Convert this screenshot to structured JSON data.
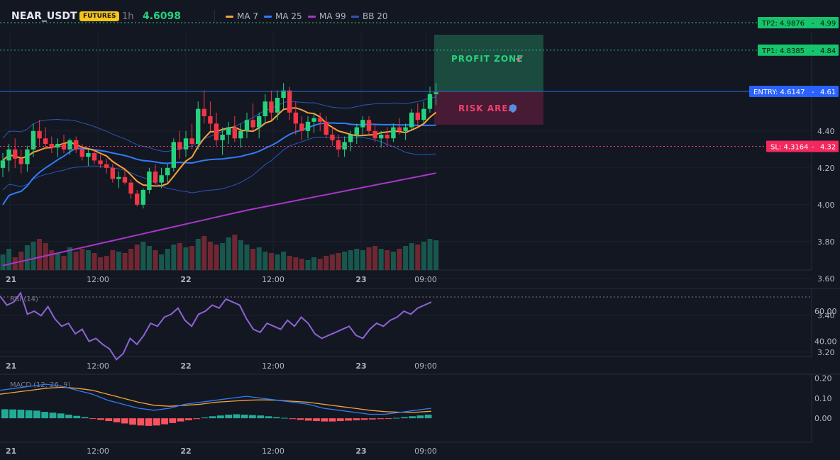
{
  "header": {
    "symbol": "NEAR_USDT",
    "badge": "FUTURES",
    "timeframe": "1h",
    "price": "4.6098",
    "legend": [
      {
        "name": "MA 7",
        "color": "#f7a33a"
      },
      {
        "name": "MA 25",
        "color": "#2f7df6"
      },
      {
        "name": "MA 99",
        "color": "#a936c9"
      },
      {
        "name": "BB 20",
        "color": "#2a56b8"
      }
    ]
  },
  "zones": {
    "profit_label": "PROFIT ZONE",
    "profit_icon": "rocket-icon",
    "risk_label": "RISK AREA",
    "risk_icon": "shield-icon"
  },
  "levels": {
    "tp2": {
      "label": "TP2: 4.9876",
      "axis": "4.99",
      "value": 4.9876
    },
    "tp1": {
      "label": "TP1: 4.8385",
      "axis": "4.84",
      "value": 4.8385
    },
    "entry": {
      "label": "ENTRY: 4.6147",
      "axis": "4.61",
      "value": 4.6147
    },
    "sl": {
      "label": "SL: 4.3164",
      "axis": "4.32",
      "value": 4.3164
    }
  },
  "axes": {
    "price_ticks": [
      "4.40",
      "4.20",
      "4.00",
      "3.80",
      "3.60",
      "3.40",
      "3.20"
    ],
    "price_tick_values": [
      4.4,
      4.2,
      4.0,
      3.8,
      3.6,
      3.4,
      3.2
    ],
    "time_ticks": [
      "21",
      "12:00",
      "22",
      "12:00",
      "23",
      "09:00"
    ],
    "rsi_ticks": [
      "60.00",
      "40.00"
    ],
    "macd_ticks": [
      "0.20",
      "0.10",
      "0.00"
    ]
  },
  "indicators": {
    "rsi_label": "RSI (14)",
    "macd_label": "MACD (12, 26, 9)"
  },
  "chart_data": {
    "type": "candlestick",
    "title": "NEAR_USDT",
    "ylim": [
      3.0,
      5.4
    ],
    "colors": {
      "up": "#26d27d",
      "down": "#f23645"
    },
    "candles": [
      [
        4.2,
        4.28,
        4.15,
        4.24
      ],
      [
        4.24,
        4.33,
        4.18,
        4.3
      ],
      [
        4.3,
        4.36,
        4.2,
        4.25
      ],
      [
        4.25,
        4.3,
        4.17,
        4.22
      ],
      [
        4.22,
        4.32,
        4.18,
        4.3
      ],
      [
        4.3,
        4.44,
        4.26,
        4.4
      ],
      [
        4.4,
        4.46,
        4.32,
        4.36
      ],
      [
        4.36,
        4.42,
        4.3,
        4.33
      ],
      [
        4.33,
        4.37,
        4.28,
        4.31
      ],
      [
        4.31,
        4.36,
        4.26,
        4.33
      ],
      [
        4.33,
        4.38,
        4.28,
        4.3
      ],
      [
        4.3,
        4.36,
        4.27,
        4.35
      ],
      [
        4.35,
        4.37,
        4.28,
        4.3
      ],
      [
        4.3,
        4.33,
        4.24,
        4.26
      ],
      [
        4.26,
        4.3,
        4.21,
        4.28
      ],
      [
        4.28,
        4.3,
        4.22,
        4.24
      ],
      [
        4.24,
        4.27,
        4.2,
        4.22
      ],
      [
        4.22,
        4.25,
        4.17,
        4.2
      ],
      [
        4.2,
        4.22,
        4.12,
        4.14
      ],
      [
        4.14,
        4.18,
        4.09,
        4.15
      ],
      [
        4.15,
        4.19,
        4.11,
        4.12
      ],
      [
        4.12,
        4.14,
        4.03,
        4.06
      ],
      [
        4.06,
        4.08,
        3.99,
        4.0
      ],
      [
        4.0,
        4.09,
        3.98,
        4.08
      ],
      [
        4.08,
        4.2,
        4.06,
        4.18
      ],
      [
        4.18,
        4.22,
        4.1,
        4.12
      ],
      [
        4.12,
        4.2,
        4.09,
        4.16
      ],
      [
        4.16,
        4.22,
        4.12,
        4.2
      ],
      [
        4.2,
        4.36,
        4.18,
        4.34
      ],
      [
        4.34,
        4.4,
        4.25,
        4.3
      ],
      [
        4.3,
        4.4,
        4.26,
        4.36
      ],
      [
        4.36,
        4.44,
        4.3,
        4.33
      ],
      [
        4.33,
        4.56,
        4.3,
        4.52
      ],
      [
        4.52,
        4.62,
        4.44,
        4.48
      ],
      [
        4.48,
        4.56,
        4.4,
        4.44
      ],
      [
        4.44,
        4.5,
        4.32,
        4.35
      ],
      [
        4.35,
        4.42,
        4.27,
        4.38
      ],
      [
        4.38,
        4.45,
        4.33,
        4.42
      ],
      [
        4.42,
        4.48,
        4.34,
        4.36
      ],
      [
        4.36,
        4.44,
        4.31,
        4.4
      ],
      [
        4.4,
        4.5,
        4.36,
        4.46
      ],
      [
        4.46,
        4.55,
        4.4,
        4.42
      ],
      [
        4.42,
        4.5,
        4.36,
        4.48
      ],
      [
        4.48,
        4.6,
        4.44,
        4.56
      ],
      [
        4.56,
        4.62,
        4.46,
        4.5
      ],
      [
        4.5,
        4.62,
        4.46,
        4.58
      ],
      [
        4.58,
        4.66,
        4.52,
        4.62
      ],
      [
        4.62,
        4.64,
        4.46,
        4.5
      ],
      [
        4.5,
        4.56,
        4.38,
        4.44
      ],
      [
        4.44,
        4.48,
        4.35,
        4.4
      ],
      [
        4.4,
        4.48,
        4.36,
        4.45
      ],
      [
        4.45,
        4.5,
        4.39,
        4.47
      ],
      [
        4.47,
        4.5,
        4.4,
        4.45
      ],
      [
        4.45,
        4.48,
        4.36,
        4.38
      ],
      [
        4.38,
        4.42,
        4.32,
        4.35
      ],
      [
        4.35,
        4.38,
        4.26,
        4.3
      ],
      [
        4.3,
        4.37,
        4.26,
        4.34
      ],
      [
        4.34,
        4.4,
        4.29,
        4.38
      ],
      [
        4.38,
        4.44,
        4.33,
        4.42
      ],
      [
        4.42,
        4.48,
        4.38,
        4.46
      ],
      [
        4.46,
        4.48,
        4.38,
        4.4
      ],
      [
        4.4,
        4.44,
        4.34,
        4.36
      ],
      [
        4.36,
        4.4,
        4.31,
        4.38
      ],
      [
        4.38,
        4.42,
        4.32,
        4.36
      ],
      [
        4.36,
        4.44,
        4.34,
        4.42
      ],
      [
        4.42,
        4.47,
        4.38,
        4.4
      ],
      [
        4.4,
        4.44,
        4.35,
        4.42
      ],
      [
        4.42,
        4.52,
        4.4,
        4.5
      ],
      [
        4.5,
        4.55,
        4.42,
        4.46
      ],
      [
        4.46,
        4.56,
        4.44,
        4.52
      ],
      [
        4.52,
        4.64,
        4.5,
        4.6
      ],
      [
        4.6,
        4.66,
        4.54,
        4.61
      ]
    ],
    "volume": [
      22,
      30,
      18,
      26,
      35,
      40,
      44,
      38,
      28,
      24,
      20,
      32,
      26,
      30,
      28,
      24,
      18,
      20,
      28,
      26,
      24,
      30,
      36,
      40,
      34,
      28,
      22,
      30,
      36,
      38,
      32,
      34,
      44,
      48,
      40,
      36,
      38,
      46,
      50,
      42,
      36,
      30,
      32,
      26,
      24,
      22,
      26,
      20,
      18,
      16,
      14,
      18,
      16,
      20,
      22,
      24,
      26,
      28,
      30,
      28,
      32,
      34,
      30,
      28,
      26,
      30,
      34,
      38,
      36,
      40,
      44,
      42
    ],
    "volume_max": 70,
    "time_labels": [
      "21",
      "12:00",
      "22",
      "12:00",
      "23",
      "09:00"
    ],
    "rsi": [
      70,
      64,
      66,
      72,
      58,
      60,
      57,
      63,
      55,
      50,
      52,
      45,
      48,
      40,
      42,
      38,
      35,
      28,
      32,
      42,
      38,
      44,
      52,
      50,
      56,
      58,
      62,
      54,
      50,
      58,
      60,
      64,
      62,
      68,
      66,
      64,
      55,
      48,
      46,
      52,
      50,
      48,
      54,
      50,
      56,
      52,
      45,
      42,
      44,
      46,
      48,
      50,
      44,
      42,
      48,
      52,
      50,
      54,
      56,
      60,
      58,
      62,
      64,
      66
    ],
    "rsi_range": [
      30,
      75
    ],
    "macd_hist": [
      0.045,
      0.044,
      0.043,
      0.04,
      0.038,
      0.032,
      0.028,
      0.024,
      0.018,
      0.012,
      0.006,
      -0.002,
      -0.008,
      -0.014,
      -0.02,
      -0.026,
      -0.032,
      -0.036,
      -0.038,
      -0.036,
      -0.03,
      -0.024,
      -0.016,
      -0.01,
      -0.004,
      0.004,
      0.01,
      0.014,
      0.018,
      0.02,
      0.018,
      0.016,
      0.014,
      0.01,
      0.006,
      0.002,
      -0.004,
      -0.008,
      -0.012,
      -0.014,
      -0.016,
      -0.016,
      -0.014,
      -0.012,
      -0.01,
      -0.008,
      -0.006,
      -0.004,
      -0.002,
      0.002,
      0.006,
      0.01,
      0.014,
      0.018
    ],
    "macd_line": [
      0.14,
      0.15,
      0.16,
      0.17,
      0.16,
      0.14,
      0.12,
      0.09,
      0.07,
      0.05,
      0.04,
      0.05,
      0.07,
      0.08,
      0.09,
      0.1,
      0.11,
      0.1,
      0.09,
      0.08,
      0.07,
      0.05,
      0.04,
      0.03,
      0.02,
      0.02,
      0.03,
      0.04,
      0.05
    ],
    "signal_line": [
      0.12,
      0.13,
      0.14,
      0.15,
      0.155,
      0.15,
      0.14,
      0.12,
      0.1,
      0.08,
      0.065,
      0.06,
      0.065,
      0.07,
      0.08,
      0.085,
      0.09,
      0.092,
      0.09,
      0.085,
      0.08,
      0.07,
      0.06,
      0.05,
      0.04,
      0.033,
      0.03,
      0.03,
      0.035
    ],
    "macd_range": [
      -0.12,
      0.22
    ]
  }
}
